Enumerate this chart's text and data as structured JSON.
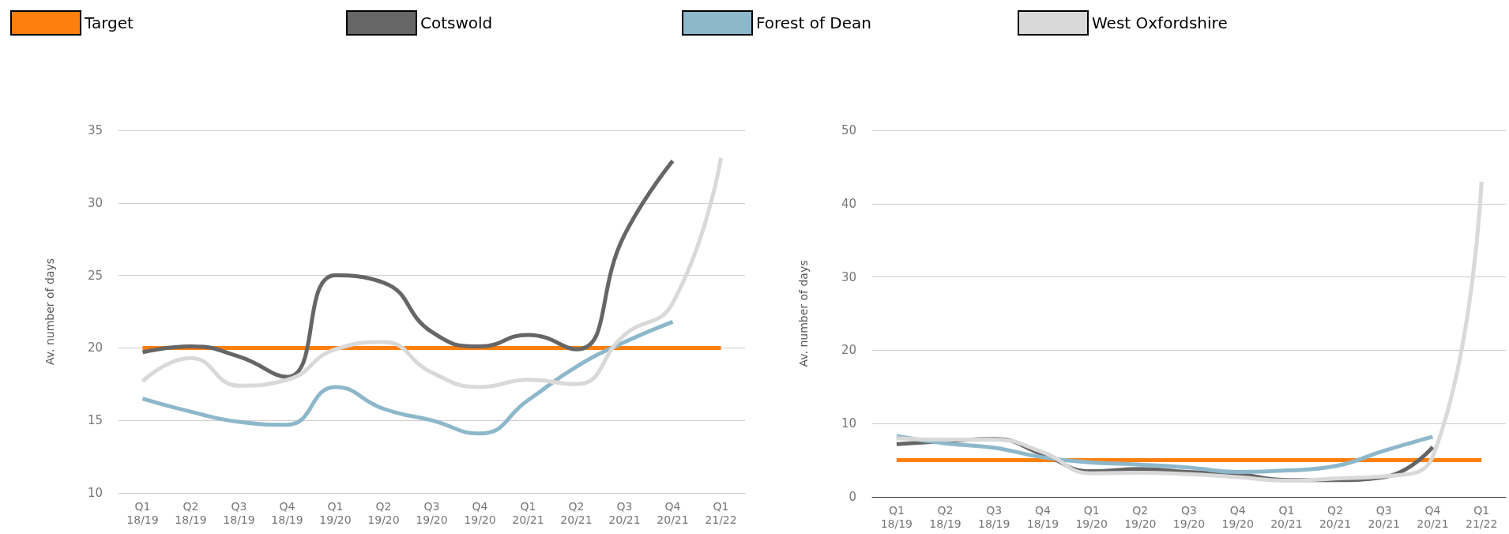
{
  "chart_data": [
    {
      "type": "line",
      "ylabel": "Av. number of days",
      "categories": [
        "Q1 18/19",
        "Q2 18/19",
        "Q3 18/19",
        "Q4 18/19",
        "Q1 19/20",
        "Q2 19/20",
        "Q3 19/20",
        "Q4 19/20",
        "Q1 20/21",
        "Q2 20/21",
        "Q3 20/21",
        "Q4 20/21",
        "Q1 21/22"
      ],
      "ylim": [
        10,
        35
      ],
      "yticks": [
        10,
        15,
        20,
        25,
        30,
        35
      ],
      "grid": "y",
      "legend": "top",
      "marker": "none",
      "series": [
        {
          "name": "Target",
          "color": "#ff7f0e",
          "values": [
            20,
            20,
            20,
            20,
            20,
            20,
            20,
            20,
            20,
            20,
            20,
            20,
            20
          ]
        },
        {
          "name": "Cotswold",
          "color": "#666666",
          "values": [
            19.7,
            20.1,
            19.4,
            18.0,
            25.0,
            24.5,
            21.1,
            20.1,
            20.9,
            19.9,
            27.8,
            32.9,
            null
          ]
        },
        {
          "name": "Forest of Dean",
          "color": "#8db8cb",
          "values": [
            16.5,
            15.6,
            14.9,
            14.7,
            17.3,
            15.8,
            15.0,
            14.1,
            16.4,
            18.7,
            20.4,
            21.8,
            null
          ]
        },
        {
          "name": "West Oxfordshire",
          "color": "#d9d9d9",
          "values": [
            17.7,
            19.3,
            17.4,
            17.8,
            19.9,
            20.4,
            18.3,
            17.3,
            17.8,
            17.5,
            20.9,
            23.1,
            33.1
          ]
        }
      ]
    },
    {
      "type": "line",
      "ylabel": "Av. number of days",
      "categories": [
        "Q1 18/19",
        "Q2 18/19",
        "Q3 18/19",
        "Q4 18/19",
        "Q1 19/20",
        "Q2 19/20",
        "Q3 19/20",
        "Q4 19/20",
        "Q1 20/21",
        "Q2 20/21",
        "Q3 20/21",
        "Q4 20/21",
        "Q1 21/22"
      ],
      "ylim": [
        0,
        50
      ],
      "yticks": [
        0,
        10,
        20,
        30,
        40,
        50
      ],
      "grid": "y",
      "legend": "top",
      "marker": "none",
      "series": [
        {
          "color": "#ff7f0e",
          "values": [
            5,
            5,
            5,
            5,
            5,
            5,
            5,
            5,
            5,
            5,
            5,
            5,
            5
          ]
        },
        {
          "color": "#666666",
          "values": [
            7.2,
            7.6,
            7.9,
            5.8,
            3.5,
            3.8,
            3.4,
            3.1,
            2.3,
            2.3,
            2.7,
            6.8,
            null
          ]
        },
        {
          "color": "#8db8cb",
          "values": [
            8.3,
            7.3,
            6.7,
            5.4,
            4.7,
            4.4,
            4.0,
            3.4,
            3.6,
            4.2,
            6.3,
            8.2,
            null
          ]
        },
        {
          "color": "#d9d9d9",
          "values": [
            8.0,
            7.8,
            7.8,
            6.1,
            3.2,
            3.3,
            3.1,
            2.7,
            2.2,
            2.5,
            2.8,
            5.5,
            43
          ]
        }
      ]
    }
  ]
}
